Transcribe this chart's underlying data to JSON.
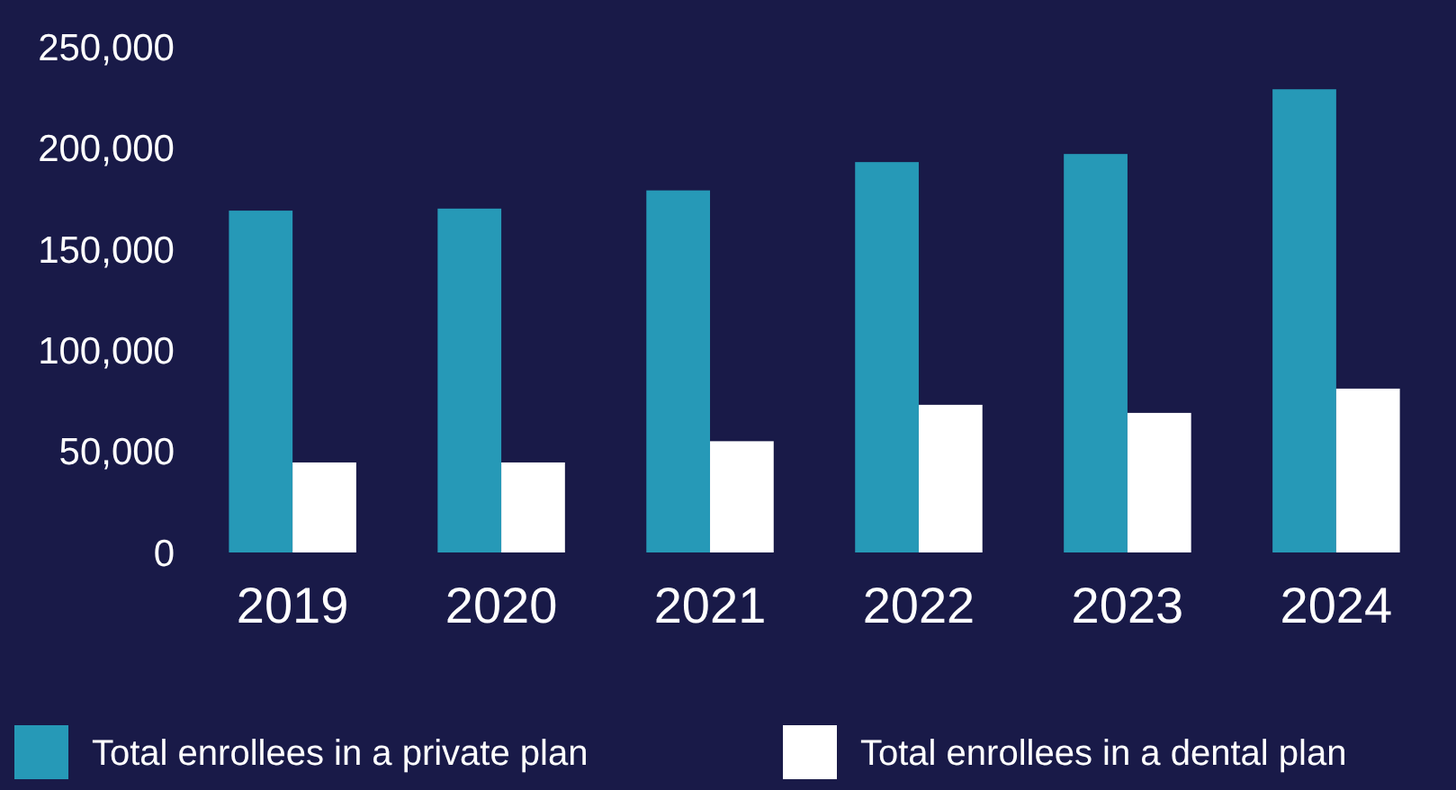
{
  "chart_data": {
    "type": "bar",
    "categories": [
      "2019",
      "2020",
      "2021",
      "2022",
      "2023",
      "2024"
    ],
    "series": [
      {
        "name": "Total enrollees in a private plan",
        "color": "#2699b7",
        "values": [
          169000,
          170000,
          179000,
          193000,
          197000,
          229000
        ]
      },
      {
        "name": "Total enrollees in a dental plan",
        "color": "#ffffff",
        "values": [
          44500,
          44500,
          55000,
          73000,
          69000,
          81000
        ]
      }
    ],
    "ylim": [
      0,
      250000
    ],
    "yticks": [
      {
        "value": 0,
        "label": "0"
      },
      {
        "value": 50000,
        "label": "50,000"
      },
      {
        "value": 100000,
        "label": "100,000"
      },
      {
        "value": 150000,
        "label": "150,000"
      },
      {
        "value": 200000,
        "label": "200,000"
      },
      {
        "value": 250000,
        "label": "250,000"
      }
    ],
    "grid": false,
    "legend": "bottom"
  }
}
